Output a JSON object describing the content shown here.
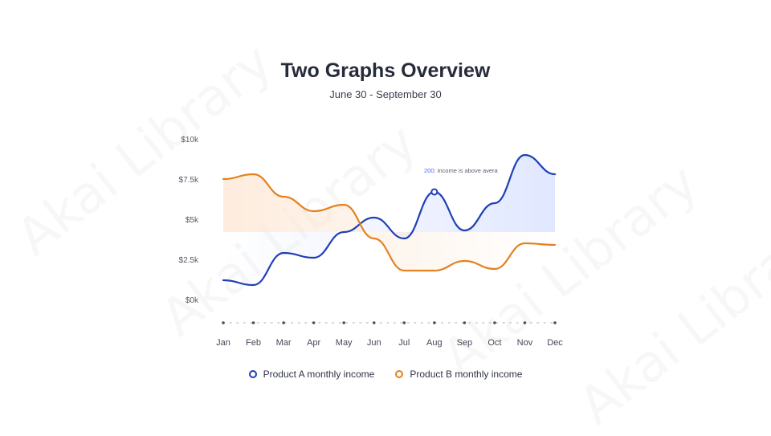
{
  "title": "Two Graphs Overview",
  "subtitle": "June 30 - September 30",
  "watermark": "Akai Library",
  "chart_data": {
    "type": "line",
    "categories": [
      "Jan",
      "Feb",
      "Mar",
      "Apr",
      "May",
      "Jun",
      "Jul",
      "Aug",
      "Sep",
      "Oct",
      "Nov",
      "Dec"
    ],
    "y_ticks": [
      "$10k",
      "$7.5k",
      "$5k",
      "$2.5k",
      "$0k"
    ],
    "ylim": [
      0,
      10000
    ],
    "series": [
      {
        "name": "Product A monthly income",
        "color": "#1f3fb5",
        "values": [
          1200,
          900,
          2900,
          2600,
          4200,
          5100,
          3800,
          6700,
          4300,
          6000,
          9000,
          7800
        ]
      },
      {
        "name": "Product B monthly income",
        "color": "#e3821f",
        "values": [
          7500,
          7800,
          6400,
          5500,
          5900,
          3800,
          1800,
          1800,
          2400,
          1900,
          3500,
          3400
        ]
      }
    ],
    "annotation": {
      "value_label": "200",
      "text": ": income is above avera",
      "category": "Aug"
    },
    "grid": false,
    "legend_position": "bottom"
  }
}
